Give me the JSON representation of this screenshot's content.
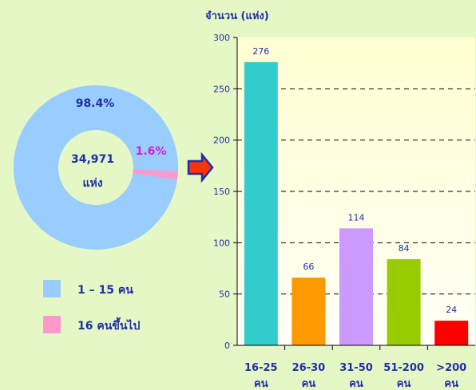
{
  "donut": {
    "center_value": "34,971",
    "center_unit": "แห่ง",
    "major_label": "98.4%",
    "minor_label": "1.6%",
    "major_color": "#99ccff",
    "minor_color": "#ff99cc",
    "minor_label_color": "#d61fd6"
  },
  "legend": [
    {
      "label": "1 – 15 คน",
      "color": "#99ccff"
    },
    {
      "label": "16 คนขึ้นไป",
      "color": "#ff99cc"
    }
  ],
  "arrow": {
    "icon": "right-arrow-icon",
    "fill": "#ff3300",
    "stroke": "#1f2fa8"
  },
  "chart_data": {
    "type": "bar",
    "ylabel": "จำนวน (แห่ง)",
    "categories": [
      [
        "16-25",
        "คน"
      ],
      [
        "26-30",
        "คน"
      ],
      [
        "31-50",
        "คน"
      ],
      [
        "51-200",
        "คน"
      ],
      [
        ">200",
        "คน"
      ]
    ],
    "values": [
      276,
      66,
      114,
      84,
      24
    ],
    "value_labels": [
      "276",
      "66",
      "114",
      "84",
      "24"
    ],
    "colors": [
      "#33cccc",
      "#ff9900",
      "#cc99ff",
      "#99cc00",
      "#ff0000"
    ],
    "ylim": [
      0,
      300
    ],
    "yticks": [
      0,
      50,
      100,
      150,
      200,
      250,
      300
    ],
    "grid": true,
    "grid_style": "dashed"
  }
}
